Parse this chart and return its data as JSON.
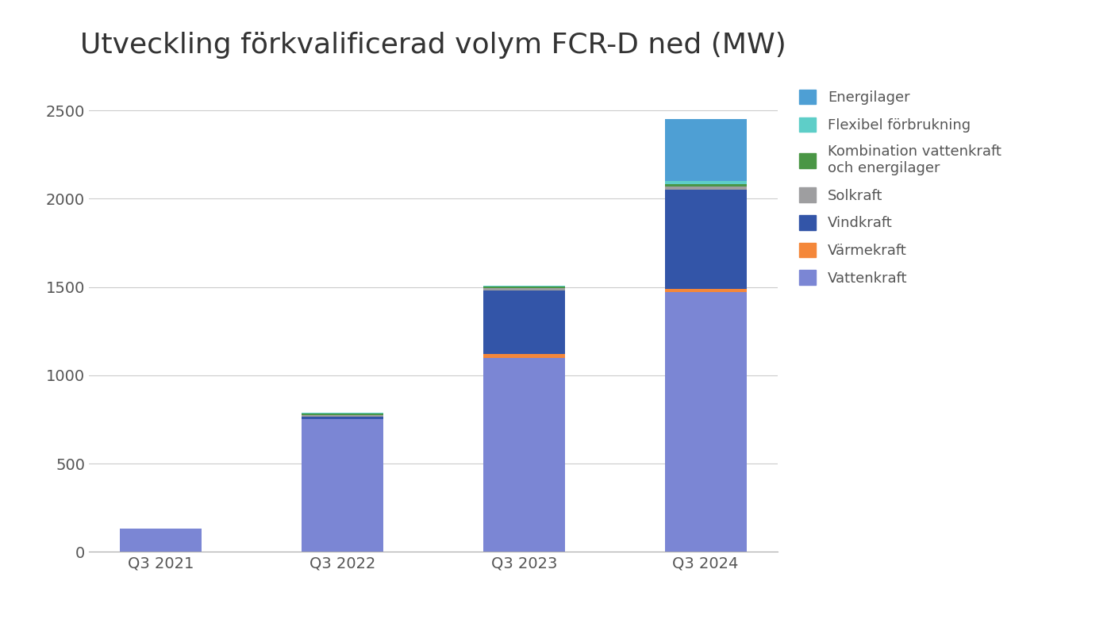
{
  "categories": [
    "Q3 2021",
    "Q3 2022",
    "Q3 2023",
    "Q3 2024"
  ],
  "title": "Utveckling förkvalificerad volym FCR-D ned (MW)",
  "series": {
    "Vattenkraft": [
      130,
      750,
      1100,
      1470
    ],
    "Värmekraft": [
      0,
      0,
      20,
      20
    ],
    "Vindkraft": [
      0,
      15,
      360,
      560
    ],
    "Solkraft": [
      0,
      10,
      12,
      20
    ],
    "Kombination vattenkraft\noch energilager": [
      0,
      10,
      12,
      15
    ],
    "Flexibel förbrukning": [
      0,
      5,
      5,
      15
    ],
    "Energilager": [
      0,
      0,
      0,
      350
    ]
  },
  "colors": {
    "Vattenkraft": "#7B86D4",
    "Värmekraft": "#F4873A",
    "Vindkraft": "#3355A8",
    "Solkraft": "#9E9EA0",
    "Kombination vattenkraft\noch energilager": "#4A9645",
    "Flexibel förbrukning": "#5ECEC8",
    "Energilager": "#4E9FD4"
  },
  "legend_labels": {
    "Energilager": "Energilager",
    "Flexibel förbrukning": "Flexibel förbrukning",
    "Kombination vattenkraft\noch energilager": "Kombination vattenkraft\noch energilager",
    "Solkraft": "Solkraft",
    "Vindkraft": "Vindkraft",
    "Värmekraft": "Värmekraft",
    "Vattenkraft": "Vattenkraft"
  },
  "ylim": [
    0,
    2700
  ],
  "yticks": [
    0,
    500,
    1000,
    1500,
    2000,
    2500
  ],
  "background_color": "#FFFFFF",
  "title_fontsize": 26,
  "tick_fontsize": 14,
  "legend_fontsize": 13,
  "bar_width": 0.45
}
